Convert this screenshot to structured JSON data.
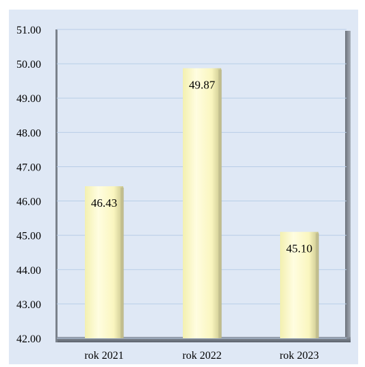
{
  "chart_data": {
    "type": "bar",
    "title": "",
    "xlabel": "",
    "ylabel": "",
    "categories": [
      "rok 2021",
      "rok 2022",
      "rok 2023"
    ],
    "values": [
      46.43,
      49.87,
      45.1
    ],
    "value_labels": [
      "46.43",
      "49.87",
      "45.10"
    ],
    "ylim": [
      42.0,
      51.0
    ],
    "y_ticks": [
      42.0,
      43.0,
      44.0,
      45.0,
      46.0,
      47.0,
      48.0,
      49.0,
      50.0,
      51.0
    ],
    "y_tick_labels": [
      "42.00",
      "43.00",
      "44.00",
      "45.00",
      "46.00",
      "47.00",
      "48.00",
      "49.00",
      "50.00",
      "51.00"
    ],
    "grid": true,
    "legend": "none",
    "colors": {
      "plot_background": "#dfe8f5",
      "bar_fill": "#fdfbc8",
      "gridline": "#b8cde6",
      "walls": "#7f8690"
    }
  }
}
